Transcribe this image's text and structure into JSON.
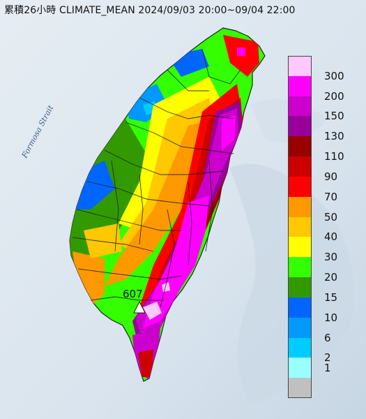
{
  "title": "累積26小時 CLIMATE_MEAN 2024/09/03 20:00~09/04 22:00",
  "strait_label": "Formosa Strait",
  "max_value_label": "607",
  "colors": {
    "sea": "#dfe8ef",
    "sea_dark": "#c9d7e4",
    "land_grey": "#c0c0c0"
  },
  "legend": {
    "items": [
      {
        "label": "300",
        "color": "#ffc8ff"
      },
      {
        "label": "200",
        "color": "#ff00ff"
      },
      {
        "label": "150",
        "color": "#cc00cc"
      },
      {
        "label": "130",
        "color": "#990099"
      },
      {
        "label": "110",
        "color": "#990000"
      },
      {
        "label": "90",
        "color": "#cc0000"
      },
      {
        "label": "70",
        "color": "#ff0000"
      },
      {
        "label": "50",
        "color": "#ff9900"
      },
      {
        "label": "40",
        "color": "#ffc800"
      },
      {
        "label": "30",
        "color": "#ffff00"
      },
      {
        "label": "20",
        "color": "#33ff00"
      },
      {
        "label": "15",
        "color": "#339900"
      },
      {
        "label": "10",
        "color": "#0066ff"
      },
      {
        "label": "6",
        "color": "#0099ff"
      },
      {
        "label": "2",
        "color": "#00ccff"
      },
      {
        "label": "1",
        "color": "#99ffff"
      },
      {
        "label": "",
        "color": "#c0c0c0"
      }
    ]
  }
}
